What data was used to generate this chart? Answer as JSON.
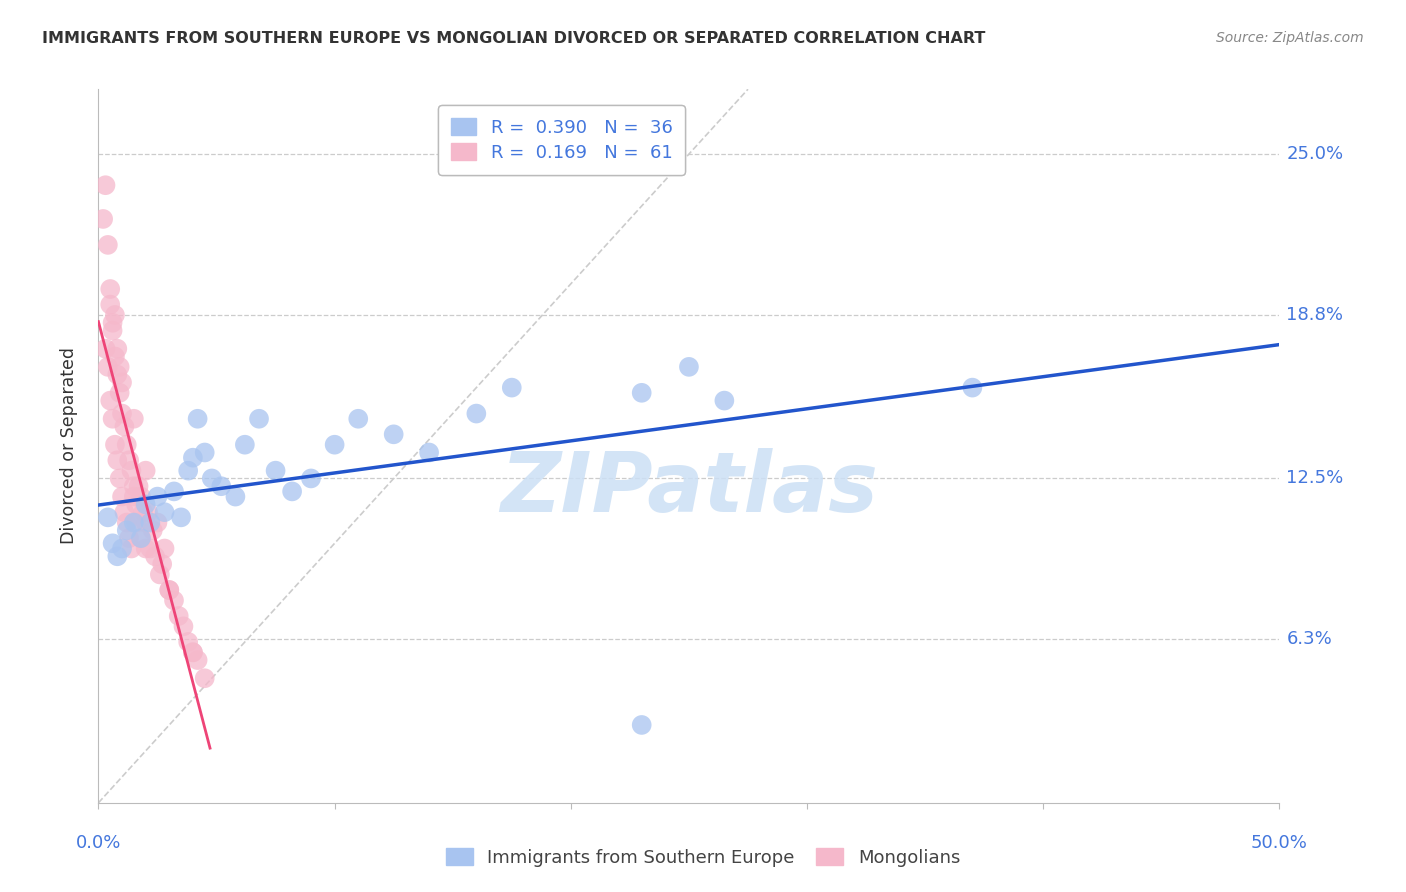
{
  "title": "IMMIGRANTS FROM SOUTHERN EUROPE VS MONGOLIAN DIVORCED OR SEPARATED CORRELATION CHART",
  "source": "Source: ZipAtlas.com",
  "ylabel": "Divorced or Separated",
  "legend_blue_r": "0.390",
  "legend_blue_n": "36",
  "legend_pink_r": "0.169",
  "legend_pink_n": "61",
  "blue_color": "#a8c4f0",
  "pink_color": "#f5b8cb",
  "trendline_blue_color": "#2255cc",
  "trendline_pink_color": "#ee4477",
  "watermark": "ZIPatlas",
  "blue_points_x": [
    0.004,
    0.006,
    0.008,
    0.01,
    0.012,
    0.015,
    0.018,
    0.02,
    0.022,
    0.025,
    0.028,
    0.032,
    0.035,
    0.038,
    0.04,
    0.042,
    0.045,
    0.048,
    0.052,
    0.058,
    0.062,
    0.068,
    0.075,
    0.082,
    0.09,
    0.1,
    0.11,
    0.125,
    0.14,
    0.16,
    0.175,
    0.23,
    0.25,
    0.265,
    0.37,
    0.23
  ],
  "blue_points_y": [
    0.11,
    0.1,
    0.095,
    0.098,
    0.105,
    0.108,
    0.102,
    0.115,
    0.108,
    0.118,
    0.112,
    0.12,
    0.11,
    0.128,
    0.133,
    0.148,
    0.135,
    0.125,
    0.122,
    0.118,
    0.138,
    0.148,
    0.128,
    0.12,
    0.125,
    0.138,
    0.148,
    0.142,
    0.135,
    0.15,
    0.16,
    0.158,
    0.168,
    0.155,
    0.16,
    0.03
  ],
  "pink_points_x": [
    0.003,
    0.004,
    0.005,
    0.005,
    0.006,
    0.006,
    0.007,
    0.007,
    0.008,
    0.008,
    0.009,
    0.009,
    0.01,
    0.01,
    0.011,
    0.011,
    0.012,
    0.012,
    0.013,
    0.013,
    0.014,
    0.014,
    0.015,
    0.015,
    0.016,
    0.016,
    0.017,
    0.018,
    0.018,
    0.019,
    0.02,
    0.02,
    0.021,
    0.022,
    0.023,
    0.024,
    0.025,
    0.026,
    0.027,
    0.028,
    0.03,
    0.032,
    0.034,
    0.036,
    0.038,
    0.04,
    0.042,
    0.045,
    0.002,
    0.003,
    0.004,
    0.005,
    0.006,
    0.007,
    0.008,
    0.009,
    0.01,
    0.015,
    0.02,
    0.03,
    0.04
  ],
  "pink_points_y": [
    0.175,
    0.168,
    0.192,
    0.155,
    0.182,
    0.148,
    0.172,
    0.138,
    0.165,
    0.132,
    0.158,
    0.125,
    0.15,
    0.118,
    0.145,
    0.112,
    0.138,
    0.108,
    0.132,
    0.102,
    0.128,
    0.098,
    0.122,
    0.118,
    0.115,
    0.108,
    0.122,
    0.118,
    0.102,
    0.112,
    0.108,
    0.098,
    0.112,
    0.098,
    0.105,
    0.095,
    0.108,
    0.088,
    0.092,
    0.098,
    0.082,
    0.078,
    0.072,
    0.068,
    0.062,
    0.058,
    0.055,
    0.048,
    0.225,
    0.238,
    0.215,
    0.198,
    0.185,
    0.188,
    0.175,
    0.168,
    0.162,
    0.148,
    0.128,
    0.082,
    0.058
  ],
  "xlim": [
    0.0,
    0.5
  ],
  "ylim": [
    0.0,
    0.275
  ],
  "ytick_values": [
    0.063,
    0.125,
    0.188,
    0.25
  ],
  "ytick_labels": [
    "6.3%",
    "12.5%",
    "18.8%",
    "25.0%"
  ],
  "xtick_values": [
    0.0,
    0.1,
    0.2,
    0.3,
    0.4,
    0.5
  ],
  "xtick_labels_show": [
    "0.0%",
    "50.0%"
  ]
}
